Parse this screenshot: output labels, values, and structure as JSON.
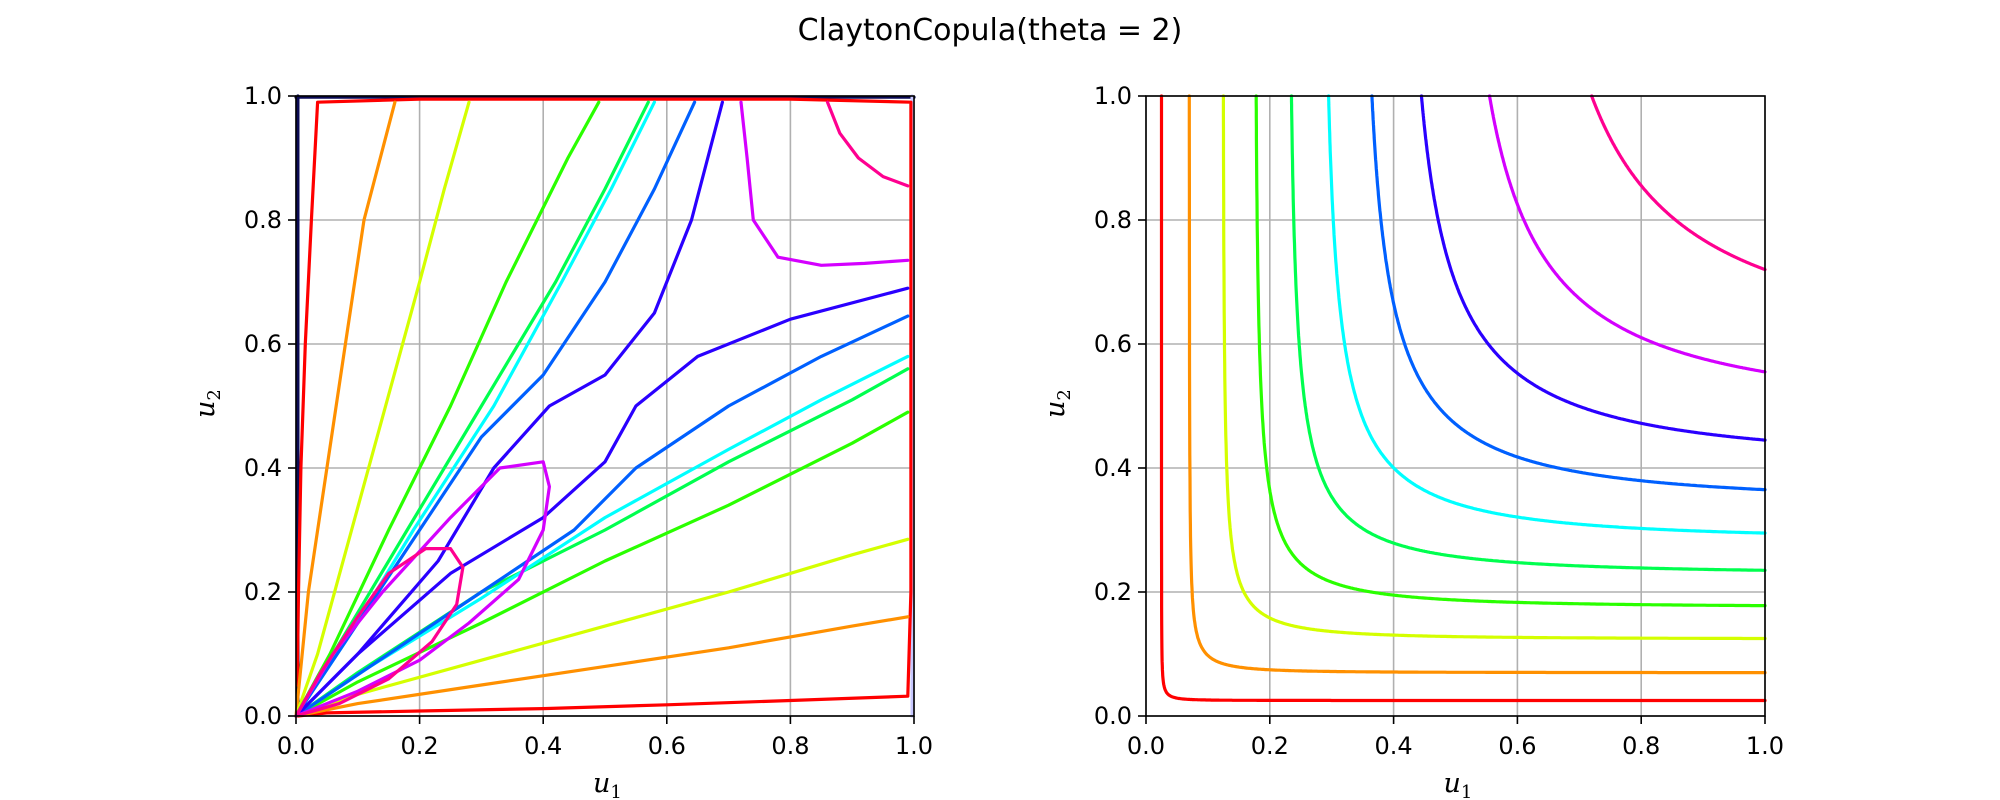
{
  "figure": {
    "title": "ClaytonCopula(theta = 2)"
  },
  "chart_data": [
    {
      "type": "line",
      "name": "density-contours",
      "xlabel_base": "u",
      "xlabel_sub": "1",
      "ylabel_base": "u",
      "ylabel_sub": "2",
      "xlim": [
        0.0,
        1.0
      ],
      "ylim": [
        0.0,
        1.0
      ],
      "xticks": [
        "0.0",
        "0.2",
        "0.4",
        "0.6",
        "0.8",
        "1.0"
      ],
      "yticks": [
        "0.0",
        "0.2",
        "0.4",
        "0.6",
        "0.8",
        "1.0"
      ],
      "grid": true,
      "series": [
        {
          "color": "#ff0000",
          "points": [
            [
              0.003,
              0.0
            ],
            [
              0.05,
              0.005
            ],
            [
              0.2,
              0.008
            ],
            [
              0.4,
              0.012
            ],
            [
              0.6,
              0.018
            ],
            [
              0.8,
              0.025
            ],
            [
              0.99,
              0.032
            ],
            [
              0.995,
              0.2
            ],
            [
              0.995,
              0.6
            ],
            [
              0.995,
              0.99
            ],
            [
              0.8,
              0.995
            ],
            [
              0.4,
              0.995
            ],
            [
              0.2,
              0.995
            ],
            [
              0.035,
              0.99
            ],
            [
              0.025,
              0.8
            ],
            [
              0.015,
              0.6
            ],
            [
              0.008,
              0.4
            ],
            [
              0.004,
              0.2
            ],
            [
              0.002,
              0.05
            ]
          ]
        },
        {
          "color": "#ff9000",
          "points": [
            [
              0.0,
              0.0
            ],
            [
              0.1,
              0.02
            ],
            [
              0.3,
              0.05
            ],
            [
              0.5,
              0.08
            ],
            [
              0.7,
              0.11
            ],
            [
              0.9,
              0.145
            ],
            [
              0.99,
              0.16
            ]
          ]
        },
        {
          "color": "#ff9000",
          "points": [
            [
              0.0,
              0.0
            ],
            [
              0.02,
              0.2
            ],
            [
              0.05,
              0.4
            ],
            [
              0.08,
              0.6
            ],
            [
              0.11,
              0.8
            ],
            [
              0.16,
              0.99
            ]
          ]
        },
        {
          "color": "#d4ff00",
          "points": [
            [
              0.0,
              0.0
            ],
            [
              0.1,
              0.035
            ],
            [
              0.3,
              0.09
            ],
            [
              0.5,
              0.145
            ],
            [
              0.7,
              0.2
            ],
            [
              0.9,
              0.26
            ],
            [
              0.99,
              0.285
            ]
          ]
        },
        {
          "color": "#d4ff00",
          "points": [
            [
              0.0,
              0.0
            ],
            [
              0.035,
              0.1
            ],
            [
              0.09,
              0.3
            ],
            [
              0.145,
              0.5
            ],
            [
              0.2,
              0.7
            ],
            [
              0.24,
              0.85
            ],
            [
              0.28,
              0.99
            ]
          ]
        },
        {
          "color": "#2aff00",
          "points": [
            [
              0.0,
              0.0
            ],
            [
              0.1,
              0.055
            ],
            [
              0.3,
              0.15
            ],
            [
              0.5,
              0.25
            ],
            [
              0.7,
              0.34
            ],
            [
              0.9,
              0.44
            ],
            [
              0.99,
              0.49
            ]
          ]
        },
        {
          "color": "#2aff00",
          "points": [
            [
              0.0,
              0.0
            ],
            [
              0.055,
              0.1
            ],
            [
              0.15,
              0.3
            ],
            [
              0.25,
              0.5
            ],
            [
              0.34,
              0.7
            ],
            [
              0.44,
              0.9
            ],
            [
              0.49,
              0.99
            ]
          ]
        },
        {
          "color": "#00ff4f",
          "points": [
            [
              0.0,
              0.0
            ],
            [
              0.1,
              0.07
            ],
            [
              0.3,
              0.2
            ],
            [
              0.5,
              0.3
            ],
            [
              0.7,
              0.41
            ],
            [
              0.9,
              0.51
            ],
            [
              0.99,
              0.56
            ]
          ]
        },
        {
          "color": "#00ff4f",
          "points": [
            [
              0.0,
              0.0
            ],
            [
              0.06,
              0.1
            ],
            [
              0.18,
              0.3
            ],
            [
              0.3,
              0.5
            ],
            [
              0.42,
              0.7
            ],
            [
              0.5,
              0.85
            ],
            [
              0.57,
              0.99
            ]
          ]
        },
        {
          "color": "#00ffff",
          "points": [
            [
              0.0,
              0.0
            ],
            [
              0.12,
              0.08
            ],
            [
              0.3,
              0.19
            ],
            [
              0.5,
              0.32
            ],
            [
              0.7,
              0.43
            ],
            [
              0.85,
              0.51
            ],
            [
              0.99,
              0.58
            ]
          ]
        },
        {
          "color": "#00ffff",
          "points": [
            [
              0.0,
              0.0
            ],
            [
              0.08,
              0.12
            ],
            [
              0.19,
              0.3
            ],
            [
              0.32,
              0.5
            ],
            [
              0.43,
              0.7
            ],
            [
              0.51,
              0.85
            ],
            [
              0.58,
              0.99
            ]
          ]
        },
        {
          "color": "#0060ff",
          "points": [
            [
              0.0,
              0.0
            ],
            [
              0.15,
              0.1
            ],
            [
              0.3,
              0.2
            ],
            [
              0.45,
              0.3
            ],
            [
              0.55,
              0.4
            ],
            [
              0.7,
              0.5
            ],
            [
              0.85,
              0.58
            ],
            [
              0.99,
              0.645
            ]
          ]
        },
        {
          "color": "#0060ff",
          "points": [
            [
              0.0,
              0.0
            ],
            [
              0.1,
              0.15
            ],
            [
              0.2,
              0.3
            ],
            [
              0.3,
              0.45
            ],
            [
              0.4,
              0.55
            ],
            [
              0.5,
              0.7
            ],
            [
              0.58,
              0.85
            ],
            [
              0.645,
              0.99
            ]
          ]
        },
        {
          "color": "#2a00ff",
          "points": [
            [
              0.0,
              0.0
            ],
            [
              0.1,
              0.1
            ],
            [
              0.25,
              0.23
            ],
            [
              0.4,
              0.32
            ],
            [
              0.5,
              0.41
            ],
            [
              0.55,
              0.5
            ],
            [
              0.65,
              0.58
            ],
            [
              0.8,
              0.64
            ],
            [
              0.99,
              0.69
            ]
          ]
        },
        {
          "color": "#2a00ff",
          "points": [
            [
              0.0,
              0.0
            ],
            [
              0.1,
              0.1
            ],
            [
              0.23,
              0.25
            ],
            [
              0.32,
              0.4
            ],
            [
              0.41,
              0.5
            ],
            [
              0.5,
              0.55
            ],
            [
              0.58,
              0.65
            ],
            [
              0.64,
              0.8
            ],
            [
              0.69,
              0.99
            ]
          ]
        },
        {
          "color": "#d400ff",
          "points": [
            [
              0.0,
              0.0
            ],
            [
              0.06,
              0.1
            ],
            [
              0.14,
              0.2
            ],
            [
              0.25,
              0.32
            ],
            [
              0.33,
              0.4
            ],
            [
              0.4,
              0.41
            ],
            [
              0.41,
              0.37
            ],
            [
              0.4,
              0.3
            ],
            [
              0.36,
              0.22
            ],
            [
              0.28,
              0.15
            ],
            [
              0.2,
              0.09
            ],
            [
              0.1,
              0.04
            ],
            [
              0.0,
              0.0
            ]
          ]
        },
        {
          "color": "#d400ff",
          "points": [
            [
              0.72,
              0.99
            ],
            [
              0.73,
              0.9
            ],
            [
              0.74,
              0.8
            ],
            [
              0.78,
              0.74
            ],
            [
              0.85,
              0.727
            ],
            [
              0.92,
              0.73
            ],
            [
              0.99,
              0.735
            ]
          ]
        },
        {
          "color": "#ff0090",
          "points": [
            [
              0.0,
              0.0
            ],
            [
              0.04,
              0.07
            ],
            [
              0.1,
              0.16
            ],
            [
              0.15,
              0.23
            ],
            [
              0.21,
              0.27
            ],
            [
              0.25,
              0.27
            ],
            [
              0.27,
              0.24
            ],
            [
              0.26,
              0.18
            ],
            [
              0.22,
              0.12
            ],
            [
              0.15,
              0.06
            ],
            [
              0.07,
              0.02
            ],
            [
              0.0,
              0.0
            ]
          ]
        },
        {
          "color": "#ff0090",
          "points": [
            [
              0.86,
              0.99
            ],
            [
              0.88,
              0.94
            ],
            [
              0.91,
              0.9
            ],
            [
              0.95,
              0.87
            ],
            [
              0.99,
              0.855
            ]
          ]
        }
      ],
      "boundary_lines": [
        {
          "color": "#0b0b55",
          "points": [
            [
              0.003,
              0.0
            ],
            [
              0.003,
              1.0
            ]
          ]
        },
        {
          "color": "#0b0b55",
          "points": [
            [
              0.0,
              0.998
            ],
            [
              1.0,
              0.998
            ]
          ]
        },
        {
          "color": "#c8c8ff",
          "points": [
            [
              0.997,
              0.0
            ],
            [
              0.997,
              1.0
            ]
          ]
        }
      ]
    },
    {
      "type": "line",
      "name": "cdf-contours",
      "xlabel_base": "u",
      "xlabel_sub": "1",
      "ylabel_base": "u",
      "ylabel_sub": "2",
      "xlim": [
        0.0,
        1.0
      ],
      "ylim": [
        0.0,
        1.0
      ],
      "xticks": [
        "0.0",
        "0.2",
        "0.4",
        "0.6",
        "0.8",
        "1.0"
      ],
      "yticks": [
        "0.0",
        "0.2",
        "0.4",
        "0.6",
        "0.8",
        "1.0"
      ],
      "grid": true,
      "levels": [
        {
          "color": "#ff0000",
          "value": 0.025
        },
        {
          "color": "#ff9000",
          "value": 0.07
        },
        {
          "color": "#d4ff00",
          "value": 0.125
        },
        {
          "color": "#2aff00",
          "value": 0.178
        },
        {
          "color": "#00ff4f",
          "value": 0.235
        },
        {
          "color": "#00ffff",
          "value": 0.295
        },
        {
          "color": "#0060ff",
          "value": 0.365
        },
        {
          "color": "#2a00ff",
          "value": 0.445
        },
        {
          "color": "#d400ff",
          "value": 0.555
        },
        {
          "color": "#ff0090",
          "value": 0.72
        }
      ]
    }
  ]
}
